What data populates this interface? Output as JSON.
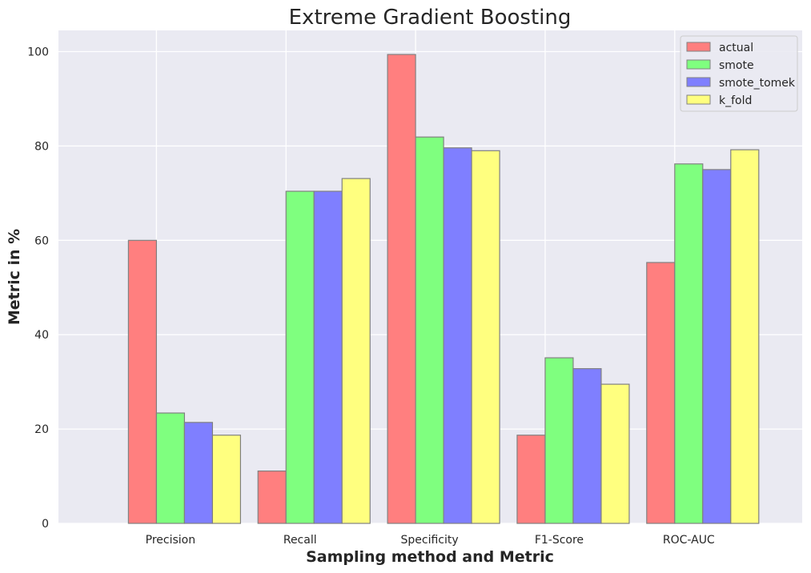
{
  "chart_data": {
    "type": "bar",
    "title": "Extreme Gradient Boosting",
    "xlabel": "Sampling method and Metric",
    "ylabel": "Metric in %",
    "categories": [
      "Precision",
      "Recall",
      "Specificity",
      "F1-Score",
      "ROC-AUC"
    ],
    "series": [
      {
        "name": "actual",
        "color": "#ff7f7f",
        "values": [
          60.0,
          11.1,
          99.4,
          18.7,
          55.3
        ]
      },
      {
        "name": "smote",
        "color": "#7fff7f",
        "values": [
          23.4,
          70.4,
          81.9,
          35.1,
          76.2
        ]
      },
      {
        "name": "smote_tomek",
        "color": "#7f7fff",
        "values": [
          21.4,
          70.4,
          79.6,
          32.8,
          75.0
        ]
      },
      {
        "name": "k_fold",
        "color": "#ffff7f",
        "values": [
          18.7,
          73.1,
          79.0,
          29.5,
          79.2
        ]
      }
    ],
    "ylim": [
      0,
      104.5
    ],
    "yticks": [
      0,
      20,
      40,
      60,
      80,
      100
    ],
    "grid": true,
    "legend": "top-right",
    "bar_edge_color": "#808080",
    "background_color": "#eaeaf2"
  }
}
